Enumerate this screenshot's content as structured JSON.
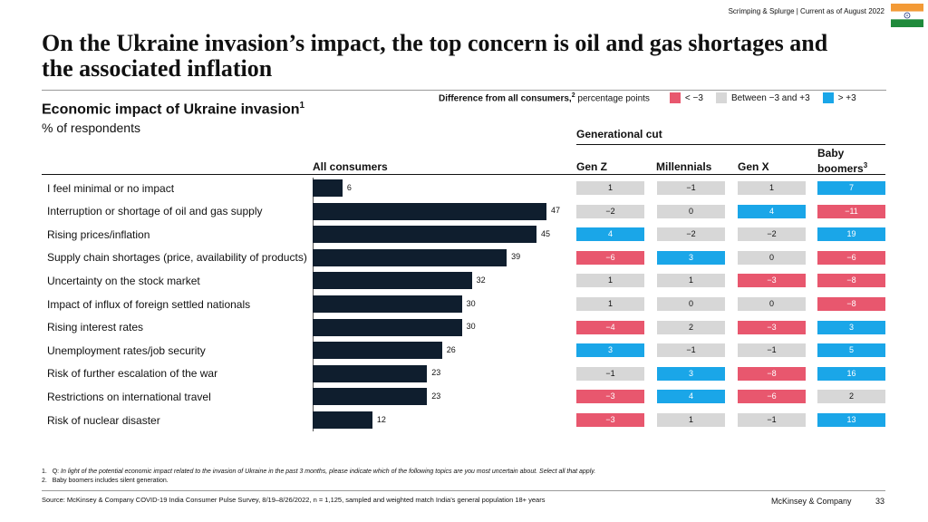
{
  "header": {
    "note": "Scrimping & Splurge | Current as of August 2022",
    "flag_colors": [
      "#f39a36",
      "#ffffff",
      "#1f8a3b"
    ],
    "flag_icon": "india-flag-icon"
  },
  "title": "On the Ukraine invasion’s impact, the top concern is oil and gas shortages and the associated inflation",
  "chart_title": "Economic impact of Ukraine invasion",
  "chart_title_sup": "1",
  "chart_subtitle": "% of respondents",
  "legend": {
    "lead": "Difference from all consumers,",
    "lead_sup": "2",
    "lead_tail": " percentage points",
    "items": [
      {
        "label": "< −3",
        "color": "#e8576e"
      },
      {
        "label": "Between −3 and +3",
        "color": "#d7d7d7"
      },
      {
        "label": "> +3",
        "color": "#1aa6e8"
      }
    ]
  },
  "generational_cut_label": "Generational cut",
  "columns": {
    "all": "All consumers",
    "genz": "Gen Z",
    "mill": "Millennials",
    "genx": "Gen X",
    "boom_line1": "Baby",
    "boom_line2": "boomers",
    "boom_sup": "3"
  },
  "chart_data": {
    "type": "bar",
    "orientation": "horizontal",
    "title": "Economic impact of Ukraine invasion",
    "ylabel": "% of respondents",
    "xlim": [
      0,
      47
    ],
    "categories": [
      "I feel minimal or no impact",
      "Interruption or shortage of oil and gas supply",
      "Rising prices/inflation",
      "Supply chain shortages (price, availability of products)",
      "Uncertainty on the stock market",
      "Impact of influx of foreign settled nationals",
      "Rising interest rates",
      "Unemployment rates/job security",
      "Risk of further escalation of the war",
      "Restrictions on international travel",
      "Risk of nuclear disaster"
    ],
    "values": [
      6,
      47,
      45,
      39,
      32,
      30,
      30,
      26,
      23,
      23,
      12
    ],
    "series_name": "All consumers",
    "difference_table": {
      "unit": "percentage points",
      "columns": [
        "Gen Z",
        "Millennials",
        "Gen X",
        "Baby boomers"
      ],
      "rows": [
        [
          1,
          -1,
          1,
          7
        ],
        [
          -2,
          0,
          4,
          -11
        ],
        [
          4,
          -2,
          -2,
          19
        ],
        [
          -6,
          3,
          0,
          -6
        ],
        [
          1,
          1,
          -3,
          -8
        ],
        [
          1,
          0,
          0,
          -8
        ],
        [
          -4,
          2,
          -3,
          3
        ],
        [
          3,
          -1,
          -1,
          5
        ],
        [
          -1,
          3,
          -8,
          16
        ],
        [
          -3,
          4,
          -6,
          2
        ],
        [
          -3,
          1,
          -1,
          13
        ]
      ],
      "color_classes": [
        [
          "neu",
          "neu",
          "neu",
          "pos"
        ],
        [
          "neu",
          "neu",
          "pos",
          "neg"
        ],
        [
          "pos",
          "neu",
          "neu",
          "pos"
        ],
        [
          "neg",
          "pos",
          "neu",
          "neg"
        ],
        [
          "neu",
          "neu",
          "neg",
          "neg"
        ],
        [
          "neu",
          "neu",
          "neu",
          "neg"
        ],
        [
          "neg",
          "neu",
          "neg",
          "pos"
        ],
        [
          "pos",
          "neu",
          "neu",
          "pos"
        ],
        [
          "neu",
          "pos",
          "neg",
          "pos"
        ],
        [
          "neg",
          "pos",
          "neg",
          "neu"
        ],
        [
          "neg",
          "neu",
          "neu",
          "pos"
        ]
      ]
    }
  },
  "footnotes": [
    {
      "num": "1.",
      "lead": "Q: ",
      "text": "In light of the potential economic impact related to the invasion of Ukraine in the past 3 months, please indicate which of the following topics are you most uncertain about. Select all that apply."
    },
    {
      "num": "2.",
      "lead": "",
      "text": "Baby boomers includes silent generation."
    }
  ],
  "source": "Source: McKinsey & Company COVID-19 India Consumer Pulse Survey, 8/19–8/26/2022, n = 1,125, sampled and weighted match India’s general population 18+ years",
  "brand": "McKinsey & Company",
  "page_number": "33"
}
